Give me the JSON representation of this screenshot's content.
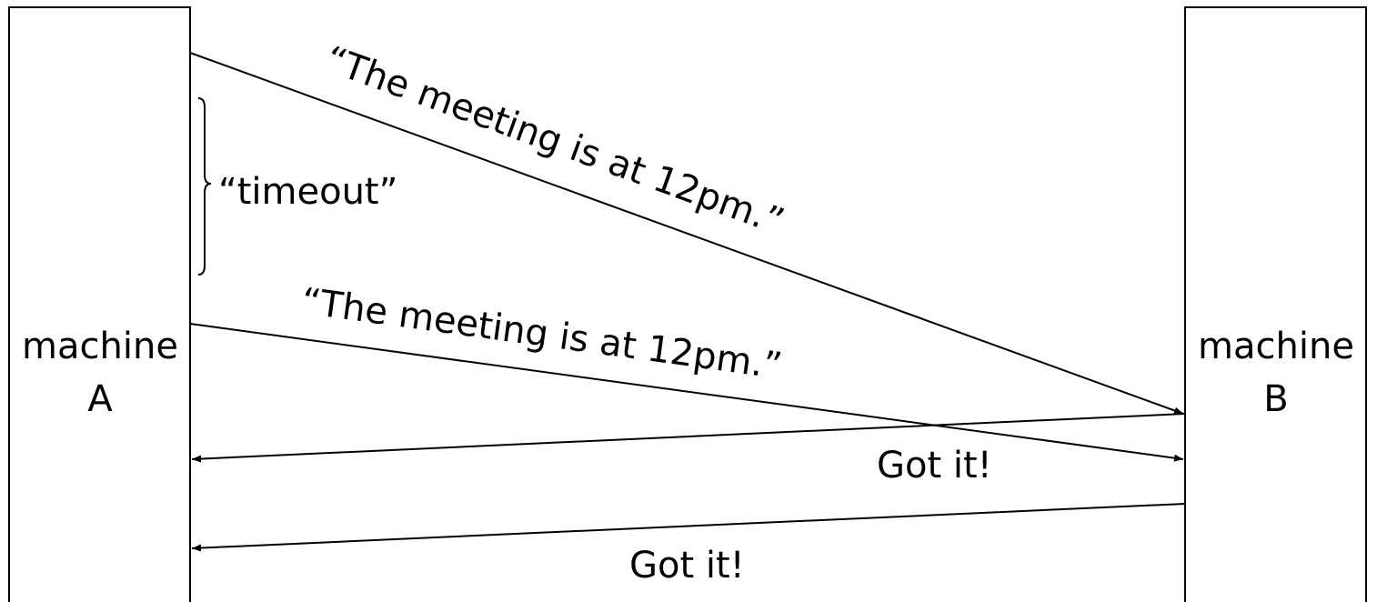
{
  "machines": {
    "a": {
      "line1": "machine",
      "line2": "A"
    },
    "b": {
      "line1": "machine",
      "line2": "B"
    }
  },
  "messages": {
    "first": "“The meeting is at 12pm.”",
    "second": "“The meeting is at 12pm.”"
  },
  "timeout": {
    "label": "“timeout”"
  },
  "acks": {
    "first": "Got it!",
    "second": "Got it!"
  },
  "colors": {
    "line": "#000000",
    "background": "#ffffff"
  }
}
